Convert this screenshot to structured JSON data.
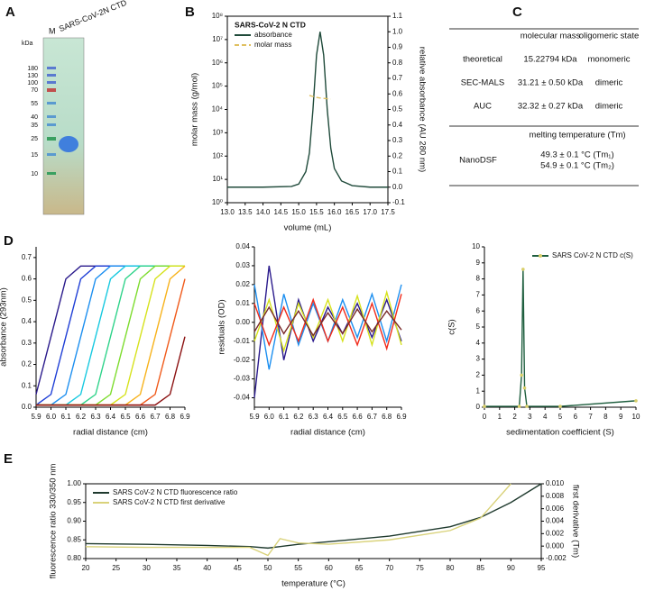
{
  "panel_labels": [
    "A",
    "B",
    "C",
    "D",
    "E"
  ],
  "gel": {
    "lanes": [
      "M",
      "SARS-CoV-2N CTD"
    ],
    "unit": "kDa",
    "markers": [
      180,
      130,
      100,
      70,
      55,
      40,
      35,
      25,
      15,
      10
    ]
  },
  "table": {
    "header": [
      "molecular mass",
      "oligomeric state"
    ],
    "rows": [
      [
        "theoretical",
        "15.22794 kDa",
        "monomeric"
      ],
      [
        "SEC-MALS",
        "31.21 ± 0.50 kDa",
        "dimeric"
      ],
      [
        "AUC",
        "32.32 ± 0.27 kDa",
        "dimeric"
      ]
    ],
    "section": "melting temperature (Tm)",
    "tm_row": [
      "NanoDSF",
      "49.3 ± 0.1 °C (Tm₁)",
      "54.9 ± 0.1 °C (Tm₂)"
    ]
  },
  "chart_data": [
    {
      "type": "line",
      "legend_title": "SARS-CoV-2 N CTD",
      "legend": "upper left",
      "ylog": true,
      "xlabel": "volume (mL)",
      "ylabel": "molar mass (g/mol)",
      "y2label": "relative absorbance (AU 280 nm)",
      "xlim": [
        13,
        17.5
      ],
      "xticks": [
        {
          "value": 13,
          "label": "13.0"
        },
        13.5,
        {
          "value": 14,
          "label": "14.0"
        },
        14.5,
        {
          "value": 15,
          "label": "15.0"
        },
        15.5,
        {
          "value": 16,
          "label": "16.0"
        },
        16.5,
        {
          "value": 17,
          "label": "17.0"
        },
        17.5
      ],
      "ylim": [
        1,
        100000000
      ],
      "yticks": [
        {
          "value": 1,
          "label": "10⁰"
        },
        {
          "value": 10,
          "label": "10¹"
        },
        {
          "value": 100,
          "label": "10²"
        },
        {
          "value": 1000,
          "label": "10³"
        },
        {
          "value": 10000,
          "label": "10⁴"
        },
        {
          "value": 100000,
          "label": "10⁵"
        },
        {
          "value": 1000000,
          "label": "10⁶"
        },
        {
          "value": 10000000,
          "label": "10⁷"
        },
        {
          "value": 100000000,
          "label": "10⁸"
        }
      ],
      "y2lim": [
        -0.1,
        1.1
      ],
      "y2ticks": [
        -0.1,
        {
          "value": 0,
          "label": "0.0"
        },
        0.1,
        0.2,
        0.3,
        0.4,
        0.5,
        0.6,
        0.7,
        0.8,
        0.9,
        {
          "value": 1,
          "label": "1.0"
        },
        1.1
      ],
      "x": [
        13.0,
        14.0,
        14.8,
        15.0,
        15.2,
        15.3,
        15.4,
        15.5,
        15.6,
        15.7,
        15.8,
        15.9,
        16.0,
        16.2,
        16.5,
        17.0,
        17.5
      ],
      "series": [
        {
          "name": "absorbance",
          "color": "#1f4a3a",
          "axis": "y2",
          "values": [
            0,
            0,
            0.005,
            0.02,
            0.1,
            0.22,
            0.5,
            0.85,
            1.0,
            0.85,
            0.5,
            0.25,
            0.12,
            0.04,
            0.01,
            0,
            0
          ]
        },
        {
          "name": "molar mass",
          "color": "#e0c060",
          "dash": true,
          "values": [
            null,
            null,
            null,
            null,
            null,
            40000,
            36000,
            33000,
            31000,
            30000,
            29000,
            28000,
            null,
            null,
            null,
            null,
            null
          ]
        }
      ]
    },
    {
      "type": "line",
      "xlabel": "radial distance (cm)",
      "ylabel": "absorbance (293nm)",
      "xlim": [
        5.9,
        6.9
      ],
      "xticks": [
        5.9,
        {
          "value": 6,
          "label": "6.0"
        },
        6.1,
        6.2,
        6.3,
        6.4,
        6.5,
        6.6,
        6.7,
        6.8,
        6.9
      ],
      "ylim": [
        0,
        0.75
      ],
      "yticks": [
        {
          "value": 0,
          "label": "0.0"
        },
        0.1,
        0.2,
        0.3,
        0.4,
        0.5,
        0.6,
        0.7
      ],
      "x": [
        5.9,
        6.0,
        6.1,
        6.2,
        6.3,
        6.4,
        6.5,
        6.6,
        6.7,
        6.8,
        6.9
      ],
      "series": [
        {
          "color": "#2a1a8c",
          "values": [
            0.06,
            0.33,
            0.6,
            0.66,
            0.66,
            0.66,
            0.66,
            0.66,
            0.66,
            0.66,
            0.66
          ]
        },
        {
          "color": "#1f3fd6",
          "values": [
            0.01,
            0.06,
            0.33,
            0.6,
            0.66,
            0.66,
            0.66,
            0.66,
            0.66,
            0.66,
            0.66
          ]
        },
        {
          "color": "#1c8ff0",
          "values": [
            0.01,
            0.01,
            0.06,
            0.33,
            0.6,
            0.66,
            0.66,
            0.66,
            0.66,
            0.66,
            0.66
          ]
        },
        {
          "color": "#17c9e0",
          "values": [
            0.01,
            0.01,
            0.01,
            0.06,
            0.33,
            0.6,
            0.66,
            0.66,
            0.66,
            0.66,
            0.66
          ]
        },
        {
          "color": "#2fd38a",
          "values": [
            0.01,
            0.01,
            0.01,
            0.01,
            0.06,
            0.33,
            0.6,
            0.66,
            0.66,
            0.66,
            0.66
          ]
        },
        {
          "color": "#7ddc2e",
          "values": [
            0.01,
            0.01,
            0.01,
            0.01,
            0.01,
            0.06,
            0.33,
            0.6,
            0.66,
            0.66,
            0.66
          ]
        },
        {
          "color": "#d6e21c",
          "values": [
            0.01,
            0.01,
            0.01,
            0.01,
            0.01,
            0.01,
            0.06,
            0.33,
            0.6,
            0.66,
            0.66
          ]
        },
        {
          "color": "#f7b21a",
          "values": [
            0.01,
            0.01,
            0.01,
            0.01,
            0.01,
            0.01,
            0.01,
            0.06,
            0.33,
            0.6,
            0.66
          ]
        },
        {
          "color": "#f05a1a",
          "values": [
            0.01,
            0.01,
            0.01,
            0.01,
            0.01,
            0.01,
            0.01,
            0.01,
            0.06,
            0.33,
            0.6
          ]
        },
        {
          "color": "#8b1010",
          "values": [
            0.01,
            0.01,
            0.01,
            0.01,
            0.01,
            0.01,
            0.01,
            0.01,
            0.01,
            0.06,
            0.33
          ]
        }
      ]
    },
    {
      "type": "line",
      "xlabel": "radial distance (cm)",
      "ylabel": "residuals (OD)",
      "xlim": [
        5.9,
        6.9
      ],
      "xticks": [
        5.9,
        {
          "value": 6,
          "label": "6.0"
        },
        6.1,
        6.2,
        6.3,
        6.4,
        6.5,
        6.6,
        6.7,
        6.8,
        6.9
      ],
      "ylim": [
        -0.045,
        0.04
      ],
      "yticks": [
        -0.04,
        -0.03,
        -0.02,
        -0.01,
        {
          "value": 0,
          "label": "0.00"
        },
        0.01,
        0.02,
        0.03,
        0.04
      ],
      "x": [
        5.9,
        6.0,
        6.1,
        6.2,
        6.3,
        6.4,
        6.5,
        6.6,
        6.7,
        6.8,
        6.9
      ],
      "series": [
        {
          "color": "#2a1a8c",
          "values": [
            -0.04,
            0.03,
            -0.02,
            0.012,
            -0.01,
            0.008,
            -0.006,
            0.01,
            -0.008,
            0.012,
            -0.01
          ]
        },
        {
          "color": "#1c8ff0",
          "values": [
            0.02,
            -0.025,
            0.015,
            -0.012,
            0.01,
            -0.01,
            0.012,
            -0.008,
            0.015,
            -0.01,
            0.02
          ]
        },
        {
          "color": "#d6e21c",
          "values": [
            -0.01,
            0.012,
            -0.015,
            0.01,
            -0.008,
            0.012,
            -0.01,
            0.014,
            -0.012,
            0.016,
            -0.012
          ]
        },
        {
          "color": "#f02a1a",
          "values": [
            0.01,
            -0.012,
            0.008,
            -0.01,
            0.012,
            -0.01,
            0.008,
            -0.012,
            0.01,
            -0.014,
            0.015
          ]
        },
        {
          "color": "#7a2a2a",
          "values": [
            -0.005,
            0.008,
            -0.006,
            0.006,
            -0.007,
            0.005,
            -0.006,
            0.007,
            -0.005,
            0.006,
            -0.004
          ]
        }
      ]
    },
    {
      "type": "line",
      "legend": "upper right",
      "xlabel": "sedimentation coefficient (S)",
      "ylabel": "c(S)",
      "xlim": [
        0,
        10
      ],
      "xticks": [
        0,
        1,
        2,
        3,
        4,
        5,
        6,
        7,
        8,
        9,
        10
      ],
      "ylim": [
        0,
        10
      ],
      "yticks": [
        0,
        1,
        2,
        3,
        4,
        5,
        6,
        7,
        8,
        9,
        10
      ],
      "x": [
        0,
        2.3,
        2.45,
        2.55,
        2.65,
        2.8,
        5,
        10
      ],
      "series": [
        {
          "name": "SARS CoV-2 N CTD c(S)",
          "color": "#1f5f3f",
          "marker_color": "#d9cf6a",
          "values": [
            0.05,
            0.05,
            2,
            8.6,
            1.2,
            0.05,
            0.05,
            0.4
          ]
        }
      ]
    },
    {
      "type": "line",
      "legend": "upper left",
      "xlabel": "temperature (°C)",
      "ylabel": "fluorescence ratio 330/350 nm",
      "y2label": "first derivative (Tm)",
      "xlim": [
        20,
        95
      ],
      "xticks": [
        20,
        25,
        30,
        35,
        40,
        45,
        50,
        55,
        60,
        65,
        70,
        75,
        80,
        85,
        90,
        95
      ],
      "ylim": [
        0.8,
        1.0
      ],
      "yticks": [
        {
          "value": 0.8,
          "label": "0.80"
        },
        0.85,
        {
          "value": 0.9,
          "label": "0.90"
        },
        0.95,
        {
          "value": 1.0,
          "label": "1.00"
        }
      ],
      "y2lim": [
        -0.002,
        0.01
      ],
      "y2ticks": [
        -0.002,
        {
          "value": 0,
          "label": "0.000"
        },
        {
          "value": 0.002,
          "label": "0.002"
        },
        {
          "value": 0.004,
          "label": "0.004"
        },
        {
          "value": 0.006,
          "label": "0.006"
        },
        {
          "value": 0.008,
          "label": "0.008"
        },
        {
          "value": 0.01,
          "label": "0.010"
        }
      ],
      "x": [
        20,
        30,
        40,
        47,
        50,
        52,
        55,
        60,
        70,
        80,
        85,
        90,
        95
      ],
      "series": [
        {
          "name": "SARS CoV-2 N CTD fluorescence ratio",
          "color": "#1f3a2e",
          "values": [
            0.84,
            0.838,
            0.835,
            0.832,
            0.828,
            0.832,
            0.838,
            0.845,
            0.86,
            0.885,
            0.91,
            0.95,
            1.0
          ]
        },
        {
          "name": "SARS CoV-2 N CTD first derivative",
          "color": "#d9d27a",
          "axis": "y2",
          "values": [
            -0.0001,
            -0.0002,
            -0.0002,
            -0.0002,
            -0.0015,
            0.0012,
            0.0005,
            0.0003,
            0.001,
            0.0025,
            0.0045,
            0.01,
            null
          ]
        }
      ]
    }
  ]
}
